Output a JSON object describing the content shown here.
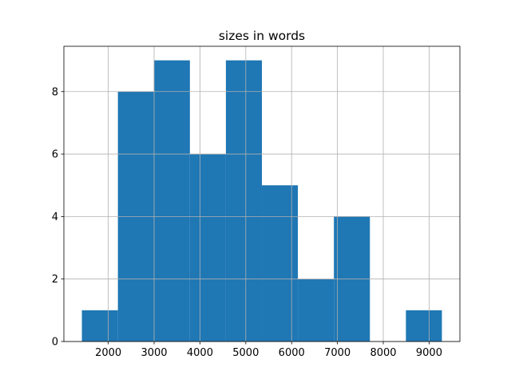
{
  "chart_data": {
    "type": "histogram",
    "title": "sizes in words",
    "bins": [
      1424,
      2210,
      2995,
      3781,
      4566,
      5352,
      6137,
      6923,
      7708,
      8494,
      9279
    ],
    "values": [
      1,
      8,
      9,
      6,
      9,
      5,
      2,
      4,
      0,
      1
    ],
    "color": "#1f77b4",
    "xlim": [
      1031,
      9672
    ],
    "xticks": [
      2000,
      3000,
      4000,
      5000,
      6000,
      7000,
      8000,
      9000
    ],
    "ylim": [
      0,
      9.45
    ],
    "yticks": [
      0,
      2,
      4,
      6,
      8
    ],
    "grid": true
  }
}
